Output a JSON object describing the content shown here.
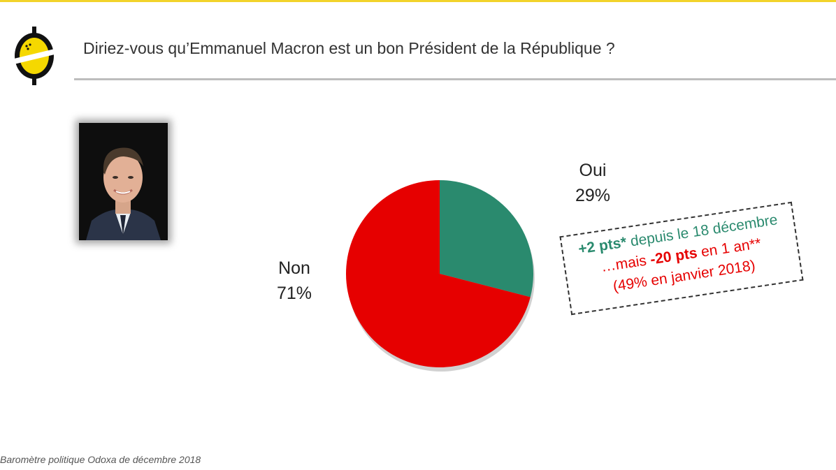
{
  "header": {
    "title": "Diriez-vous qu’Emmanuel Macron est un bon Président de la République ?"
  },
  "colors": {
    "accent": "#f2d32b",
    "oui": "#2a8a6e",
    "non": "#e60000"
  },
  "chart_data": {
    "type": "pie",
    "slices": [
      {
        "label": "Oui",
        "value": 29,
        "value_text": "29%",
        "color": "#2a8a6e"
      },
      {
        "label": "Non",
        "value": 71,
        "value_text": "71%",
        "color": "#e60000"
      }
    ]
  },
  "callout": {
    "line1_bold": "+2 pts*",
    "line1_rest": " depuis le 18 décembre",
    "line2_prefix": "…mais ",
    "line2_bold": "-20 pts",
    "line2_rest": " en 1 an**",
    "line3": "(49% en janvier 2018)"
  },
  "footer": {
    "source": "Baromètre politique Odoxa de décembre 2018"
  }
}
